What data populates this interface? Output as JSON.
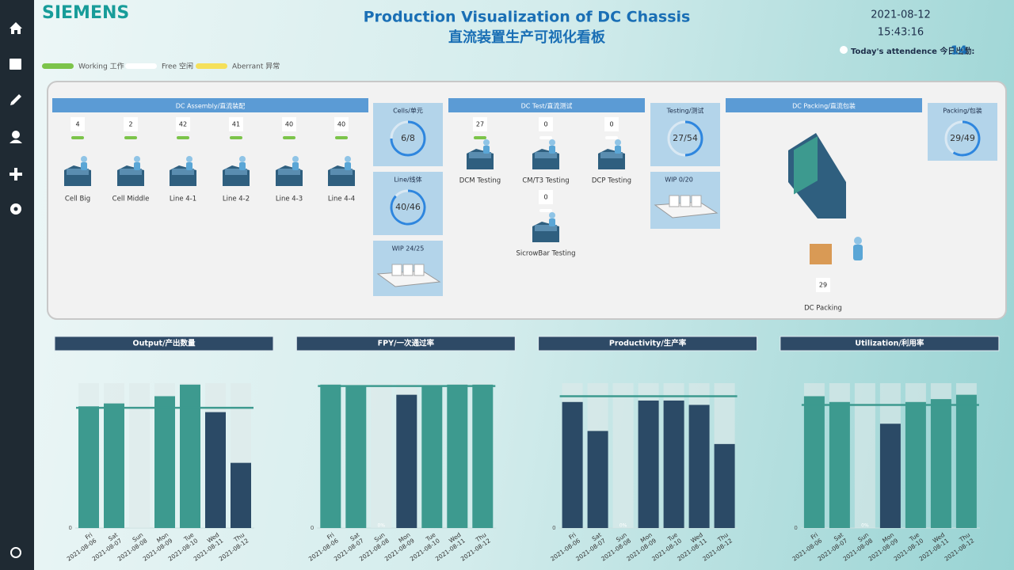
{
  "header": {
    "logo": "SIEMENS",
    "title": "Production Visualization of DC Chassis",
    "subtitle": "直流装置生产可视化看板",
    "date": "2021-08-12",
    "time": "15:43:16",
    "attendance_label": "Today's attendence 今日出勤:",
    "attendance": 14
  },
  "legend": [
    {
      "label": "Working 工作",
      "color": "#7cc44a"
    },
    {
      "label": "Free 空闲",
      "color": "#ffffff"
    },
    {
      "label": "Aberrant 异常",
      "color": "#f5e05a"
    }
  ],
  "sections": [
    {
      "title": "DC Assembly/直流装配",
      "stations": [
        {
          "name": "Cell Big",
          "count": 4,
          "status_color": "#7cc44a"
        },
        {
          "name": "Cell Middle",
          "count": 2,
          "status_color": "#7cc44a"
        },
        {
          "name": "Line 4-1",
          "count": 42,
          "status_color": "#7cc44a"
        },
        {
          "name": "Line 4-2",
          "count": 41,
          "status_color": "#7cc44a"
        },
        {
          "name": "Line 4-3",
          "count": 40,
          "status_color": "#7cc44a"
        },
        {
          "name": "Line 4-4",
          "count": 40,
          "status_color": "#7cc44a"
        }
      ]
    },
    {
      "title": "DC Test/直流测试",
      "stations": [
        {
          "name": "DCM Testing",
          "count": 27,
          "status_color": "#7cc44a"
        },
        {
          "name": "CM/T3 Testing",
          "count": 0,
          "status_color": "#ffffff"
        },
        {
          "name": "DCP Testing",
          "count": 0,
          "status_color": "#ffffff"
        },
        {
          "name": "SicrowBar Testing",
          "count": 0,
          "status_color": "#ffffff"
        }
      ]
    },
    {
      "title": "DC Packing/直流包装",
      "stations": [
        {
          "name": "DC Packing",
          "count": 29,
          "status_color": null
        }
      ]
    }
  ],
  "gauges": [
    {
      "title": "Cells/单元",
      "done": 6,
      "total": 8,
      "label": "6/8"
    },
    {
      "title": "Line/线体",
      "done": 40,
      "total": 46,
      "label": "40/46"
    },
    {
      "title": "Testing/测试",
      "done": 27,
      "total": 54,
      "label": "27/54"
    },
    {
      "title": "Packing/包装",
      "done": 29,
      "total": 49,
      "label": "29/49"
    }
  ],
  "wip": [
    {
      "title": "WIP 24/25"
    },
    {
      "title": "WIP 0/20"
    }
  ],
  "charts": [
    {
      "type": "bar",
      "title": "Output/产出数量",
      "days": [
        "Fri",
        "Sat",
        "Sun",
        "Mon",
        "Tue",
        "Wed",
        "Thu"
      ],
      "dates": [
        "2021-08-06",
        "2021-08-07",
        "2021-08-08",
        "2021-08-09",
        "2021-08-10",
        "2021-08-11",
        "2021-08-12"
      ],
      "values": [
        84,
        86,
        0,
        91,
        99,
        80,
        45
      ],
      "colors": [
        "#3d9a8f",
        "#3d9a8f",
        "#3d9a8f",
        "#3d9a8f",
        "#3d9a8f",
        "#2b4a66",
        "#2b4a66"
      ],
      "target": 83,
      "ylim": [
        0,
        100
      ],
      "yticks": [
        0
      ]
    },
    {
      "type": "bar",
      "title": "FPY/一次通过率",
      "days": [
        "Fri",
        "Sat",
        "Sun",
        "Mon",
        "Tue",
        "Wed",
        "Thu"
      ],
      "dates": [
        "2021-08-06",
        "2021-08-07",
        "2021-08-08",
        "2021-08-09",
        "2021-08-10",
        "2021-08-11",
        "2021-08-12"
      ],
      "values": [
        99,
        98,
        0,
        92,
        98,
        99,
        99
      ],
      "value_labels": [
        null,
        null,
        "0%",
        null,
        null,
        null,
        null
      ],
      "colors": [
        "#3d9a8f",
        "#3d9a8f",
        "#3d9a8f",
        "#2b4a66",
        "#3d9a8f",
        "#3d9a8f",
        "#3d9a8f"
      ],
      "target": 98,
      "ylim": [
        0,
        100
      ],
      "yticks": [
        0
      ]
    },
    {
      "type": "bar",
      "title": "Productivity/生产率",
      "days": [
        "Fri",
        "Sat",
        "Sun",
        "Mon",
        "Tue",
        "Wed",
        "Thu"
      ],
      "dates": [
        "2021-08-06",
        "2021-08-07",
        "2021-08-08",
        "2021-08-09",
        "2021-08-10",
        "2021-08-11",
        "2021-08-12"
      ],
      "values": [
        87,
        67,
        0,
        88,
        88,
        85,
        58
      ],
      "value_labels": [
        null,
        null,
        "0%",
        null,
        null,
        null,
        null
      ],
      "colors": [
        "#2b4a66",
        "#2b4a66",
        "#2b4a66",
        "#2b4a66",
        "#2b4a66",
        "#2b4a66",
        "#2b4a66"
      ],
      "target": 91,
      "ylim": [
        0,
        100
      ],
      "yticks": [
        0
      ]
    },
    {
      "type": "bar",
      "title": "Utilization/利用率",
      "days": [
        "Fri",
        "Sat",
        "Sun",
        "Mon",
        "Tue",
        "Wed",
        "Thu"
      ],
      "dates": [
        "2021-08-06",
        "2021-08-07",
        "2021-08-08",
        "2021-08-09",
        "2021-08-10",
        "2021-08-11",
        "2021-08-12"
      ],
      "values": [
        91,
        87,
        0,
        72,
        87,
        89,
        92
      ],
      "value_labels": [
        null,
        null,
        "0%",
        null,
        null,
        null,
        null
      ],
      "colors": [
        "#3d9a8f",
        "#3d9a8f",
        "#3d9a8f",
        "#2b4a66",
        "#3d9a8f",
        "#3d9a8f",
        "#3d9a8f"
      ],
      "target": 85,
      "ylim": [
        0,
        100
      ],
      "yticks": [
        0
      ]
    }
  ]
}
